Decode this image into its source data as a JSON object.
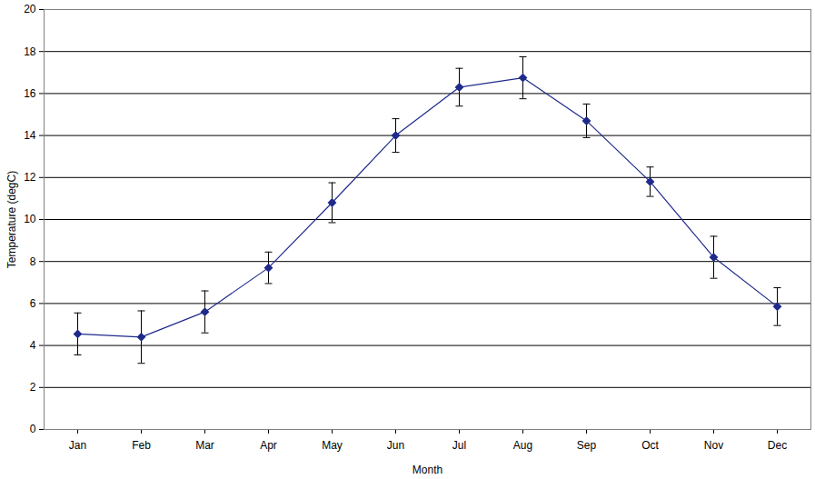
{
  "chart_data": {
    "type": "line",
    "x_label": "Month",
    "y_label": "Temperature (degC)",
    "categories": [
      "Jan",
      "Feb",
      "Mar",
      "Apr",
      "May",
      "Jun",
      "Jul",
      "Aug",
      "Sep",
      "Oct",
      "Nov",
      "Dec"
    ],
    "values": [
      4.55,
      4.4,
      5.6,
      7.7,
      10.8,
      14.0,
      16.3,
      16.75,
      14.7,
      11.8,
      8.2,
      5.85
    ],
    "errors": [
      1.0,
      1.25,
      1.0,
      0.75,
      0.95,
      0.8,
      0.9,
      1.0,
      0.8,
      0.7,
      1.0,
      0.9
    ],
    "color": "#1f2a8a",
    "marker": "diamond",
    "ylim": [
      0,
      20
    ],
    "yticks": [
      0,
      2,
      4,
      6,
      8,
      10,
      12,
      14,
      16,
      18,
      20
    ],
    "grid": true
  }
}
